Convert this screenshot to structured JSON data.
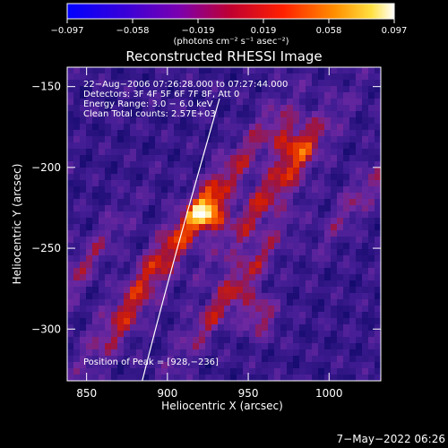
{
  "colorbar": {
    "ticks": [
      "−0.097",
      "−0.058",
      "−0.019",
      "0.019",
      "0.058",
      "0.097"
    ],
    "units": "(photons cm⁻² s⁻¹ asec⁻²)"
  },
  "chart_data": {
    "type": "heatmap",
    "title": "Reconstructed RHESSI Image",
    "xlabel": "Heliocentric X (arcsec)",
    "ylabel": "Heliocentric Y (arcsec)",
    "xlim": [
      838,
      1032
    ],
    "ylim": [
      -332,
      -138
    ],
    "xticks": [
      850,
      900,
      950,
      1000
    ],
    "xtick_labels": [
      "850",
      "900",
      "950",
      "1000"
    ],
    "yticks": [
      -150,
      -200,
      -250,
      -300
    ],
    "ytick_labels": [
      "−150",
      "−200",
      "−250",
      "−300"
    ],
    "value_range": [
      -0.097,
      0.097
    ],
    "colormap": "rainbow+white (blue-purple-red-orange-yellow-white)",
    "info_lines": [
      "22−Aug−2006 07:26:28.000 to 07:27:44.000",
      "Detectors: 3F 4F 5F 6F 7F 8F, Att 0",
      "Energy Range: 3.0 − 6.0 keV",
      "Clean    Total counts: 2.57E+03"
    ],
    "peak_label": "Position of Peak = [928,−236]",
    "peak": [
      928,
      -236
    ]
  },
  "footer": {
    "timestamp": "7−May−2022 06:26"
  }
}
